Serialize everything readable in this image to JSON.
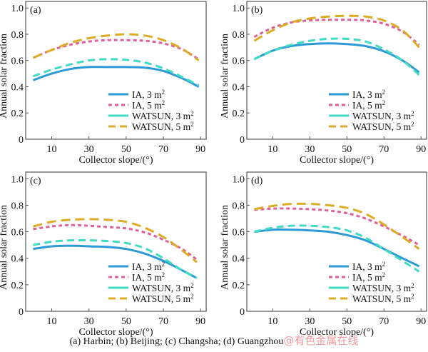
{
  "caption": "(a) Harbin; (b) Beijing; (c) Changsha; (d) Guangzhou",
  "watermark": "@有色金属在线",
  "colors": {
    "IA, 3 m²": "#2b9ad6",
    "IA, 5 m²": "#e0609c",
    "WATSUN, 3 m²": "#3fdcc3",
    "WATSUN, 5 m²": "#dcad24",
    "axis": "#555555"
  },
  "chart_data": [
    {
      "type": "line",
      "panel_label": "(a)",
      "city": "Harbin",
      "xlabel": "Collector slope/(°)",
      "ylabel": "Annual solar fraction",
      "xlim": [
        -4,
        93
      ],
      "ylim": [
        0,
        1.05
      ],
      "xticks": [
        10,
        30,
        50,
        70,
        90
      ],
      "yticks": [
        0,
        0.2,
        0.4,
        0.6,
        0.8,
        1.0
      ],
      "ytick_labels": [
        "0",
        "0.2",
        "0.4",
        "0.6",
        "0.8",
        "1.0"
      ],
      "grid": false,
      "legend_position": "bottom-right",
      "x": [
        0,
        10,
        20,
        30,
        40,
        50,
        60,
        70,
        80,
        89
      ],
      "series": [
        {
          "name": "IA, 3 m²",
          "style": "solid",
          "values": [
            0.45,
            0.5,
            0.535,
            0.55,
            0.55,
            0.55,
            0.545,
            0.52,
            0.465,
            0.4
          ]
        },
        {
          "name": "IA, 5 m²",
          "style": "dotted",
          "values": [
            0.62,
            0.68,
            0.72,
            0.745,
            0.755,
            0.755,
            0.75,
            0.73,
            0.685,
            0.61
          ]
        },
        {
          "name": "WATSUN, 3 m²",
          "style": "dashed",
          "values": [
            0.48,
            0.53,
            0.57,
            0.6,
            0.61,
            0.605,
            0.585,
            0.54,
            0.475,
            0.41
          ]
        },
        {
          "name": "WATSUN, 5 m²",
          "style": "longdash",
          "values": [
            0.62,
            0.68,
            0.735,
            0.77,
            0.79,
            0.8,
            0.79,
            0.755,
            0.69,
            0.6
          ]
        }
      ]
    },
    {
      "type": "line",
      "panel_label": "(b)",
      "city": "Beijing",
      "xlabel": "Collector slope/(°)",
      "ylabel": "Annual solar fraction",
      "xlim": [
        -4,
        93
      ],
      "ylim": [
        0,
        1.05
      ],
      "xticks": [
        10,
        30,
        50,
        70,
        90
      ],
      "yticks": [
        0,
        0.2,
        0.4,
        0.6,
        0.8,
        1.0
      ],
      "ytick_labels": [
        "0",
        "0.2",
        "0.4",
        "0.6",
        "0.8",
        "1.0"
      ],
      "grid": false,
      "legend_position": "bottom-right",
      "x": [
        0,
        10,
        20,
        30,
        40,
        50,
        60,
        70,
        80,
        89
      ],
      "series": [
        {
          "name": "IA, 3 m²",
          "style": "solid",
          "values": [
            0.61,
            0.675,
            0.71,
            0.725,
            0.73,
            0.725,
            0.71,
            0.67,
            0.6,
            0.51
          ]
        },
        {
          "name": "IA, 5 m²",
          "style": "dotted",
          "values": [
            0.78,
            0.85,
            0.89,
            0.905,
            0.91,
            0.91,
            0.905,
            0.88,
            0.82,
            0.72
          ]
        },
        {
          "name": "WATSUN, 3 m²",
          "style": "dashed",
          "values": [
            0.61,
            0.675,
            0.72,
            0.75,
            0.765,
            0.765,
            0.745,
            0.685,
            0.6,
            0.49
          ]
        },
        {
          "name": "WATSUN, 5 m²",
          "style": "longdash",
          "values": [
            0.75,
            0.83,
            0.89,
            0.92,
            0.935,
            0.94,
            0.935,
            0.905,
            0.83,
            0.7
          ]
        }
      ]
    },
    {
      "type": "line",
      "panel_label": "(c)",
      "city": "Changsha",
      "xlabel": "Collector slope/(°)",
      "ylabel": "Annual solar fraction",
      "xlim": [
        -4,
        93
      ],
      "ylim": [
        0,
        1.05
      ],
      "xticks": [
        10,
        30,
        50,
        70,
        90
      ],
      "yticks": [
        0,
        0.2,
        0.4,
        0.6,
        0.8,
        1.0
      ],
      "ytick_labels": [
        "0",
        "0.2",
        "0.4",
        "0.6",
        "0.8",
        "1.0"
      ],
      "grid": false,
      "legend_position": "bottom-right",
      "x": [
        0,
        10,
        20,
        30,
        40,
        50,
        60,
        70,
        80,
        88
      ],
      "series": [
        {
          "name": "IA, 3 m²",
          "style": "solid",
          "values": [
            0.47,
            0.49,
            0.495,
            0.49,
            0.485,
            0.47,
            0.435,
            0.38,
            0.31,
            0.25
          ]
        },
        {
          "name": "IA, 5 m²",
          "style": "dotted",
          "values": [
            0.62,
            0.64,
            0.65,
            0.645,
            0.635,
            0.625,
            0.595,
            0.54,
            0.47,
            0.39
          ]
        },
        {
          "name": "WATSUN, 3 m²",
          "style": "dashed",
          "values": [
            0.5,
            0.525,
            0.535,
            0.535,
            0.53,
            0.515,
            0.475,
            0.4,
            0.31,
            0.25
          ]
        },
        {
          "name": "WATSUN, 5 m²",
          "style": "longdash",
          "values": [
            0.64,
            0.675,
            0.69,
            0.695,
            0.69,
            0.675,
            0.63,
            0.56,
            0.46,
            0.37
          ]
        }
      ]
    },
    {
      "type": "line",
      "panel_label": "(d)",
      "city": "Guangzhou",
      "xlabel": "Collector slope/(°)",
      "ylabel": "Annual solar fraction",
      "xlim": [
        -4,
        93
      ],
      "ylim": [
        0,
        1.05
      ],
      "xticks": [
        10,
        30,
        50,
        70,
        90
      ],
      "yticks": [
        0,
        0.2,
        0.4,
        0.6,
        0.8,
        1.0
      ],
      "ytick_labels": [
        "0",
        "0.2",
        "0.4",
        "0.6",
        "0.8",
        "1.0"
      ],
      "grid": false,
      "legend_position": "bottom-right",
      "x": [
        0,
        10,
        20,
        30,
        40,
        50,
        60,
        70,
        80,
        89
      ],
      "series": [
        {
          "name": "IA, 3 m²",
          "style": "solid",
          "values": [
            0.6,
            0.615,
            0.615,
            0.61,
            0.6,
            0.575,
            0.535,
            0.47,
            0.4,
            0.34
          ]
        },
        {
          "name": "IA, 5 m²",
          "style": "dotted",
          "values": [
            0.765,
            0.775,
            0.775,
            0.77,
            0.76,
            0.74,
            0.7,
            0.64,
            0.57,
            0.5
          ]
        },
        {
          "name": "WATSUN, 3 m²",
          "style": "dashed",
          "values": [
            0.6,
            0.63,
            0.645,
            0.645,
            0.635,
            0.61,
            0.555,
            0.47,
            0.38,
            0.3
          ]
        },
        {
          "name": "WATSUN, 5 m²",
          "style": "longdash",
          "values": [
            0.77,
            0.795,
            0.81,
            0.81,
            0.8,
            0.78,
            0.735,
            0.655,
            0.56,
            0.47
          ]
        }
      ]
    }
  ]
}
